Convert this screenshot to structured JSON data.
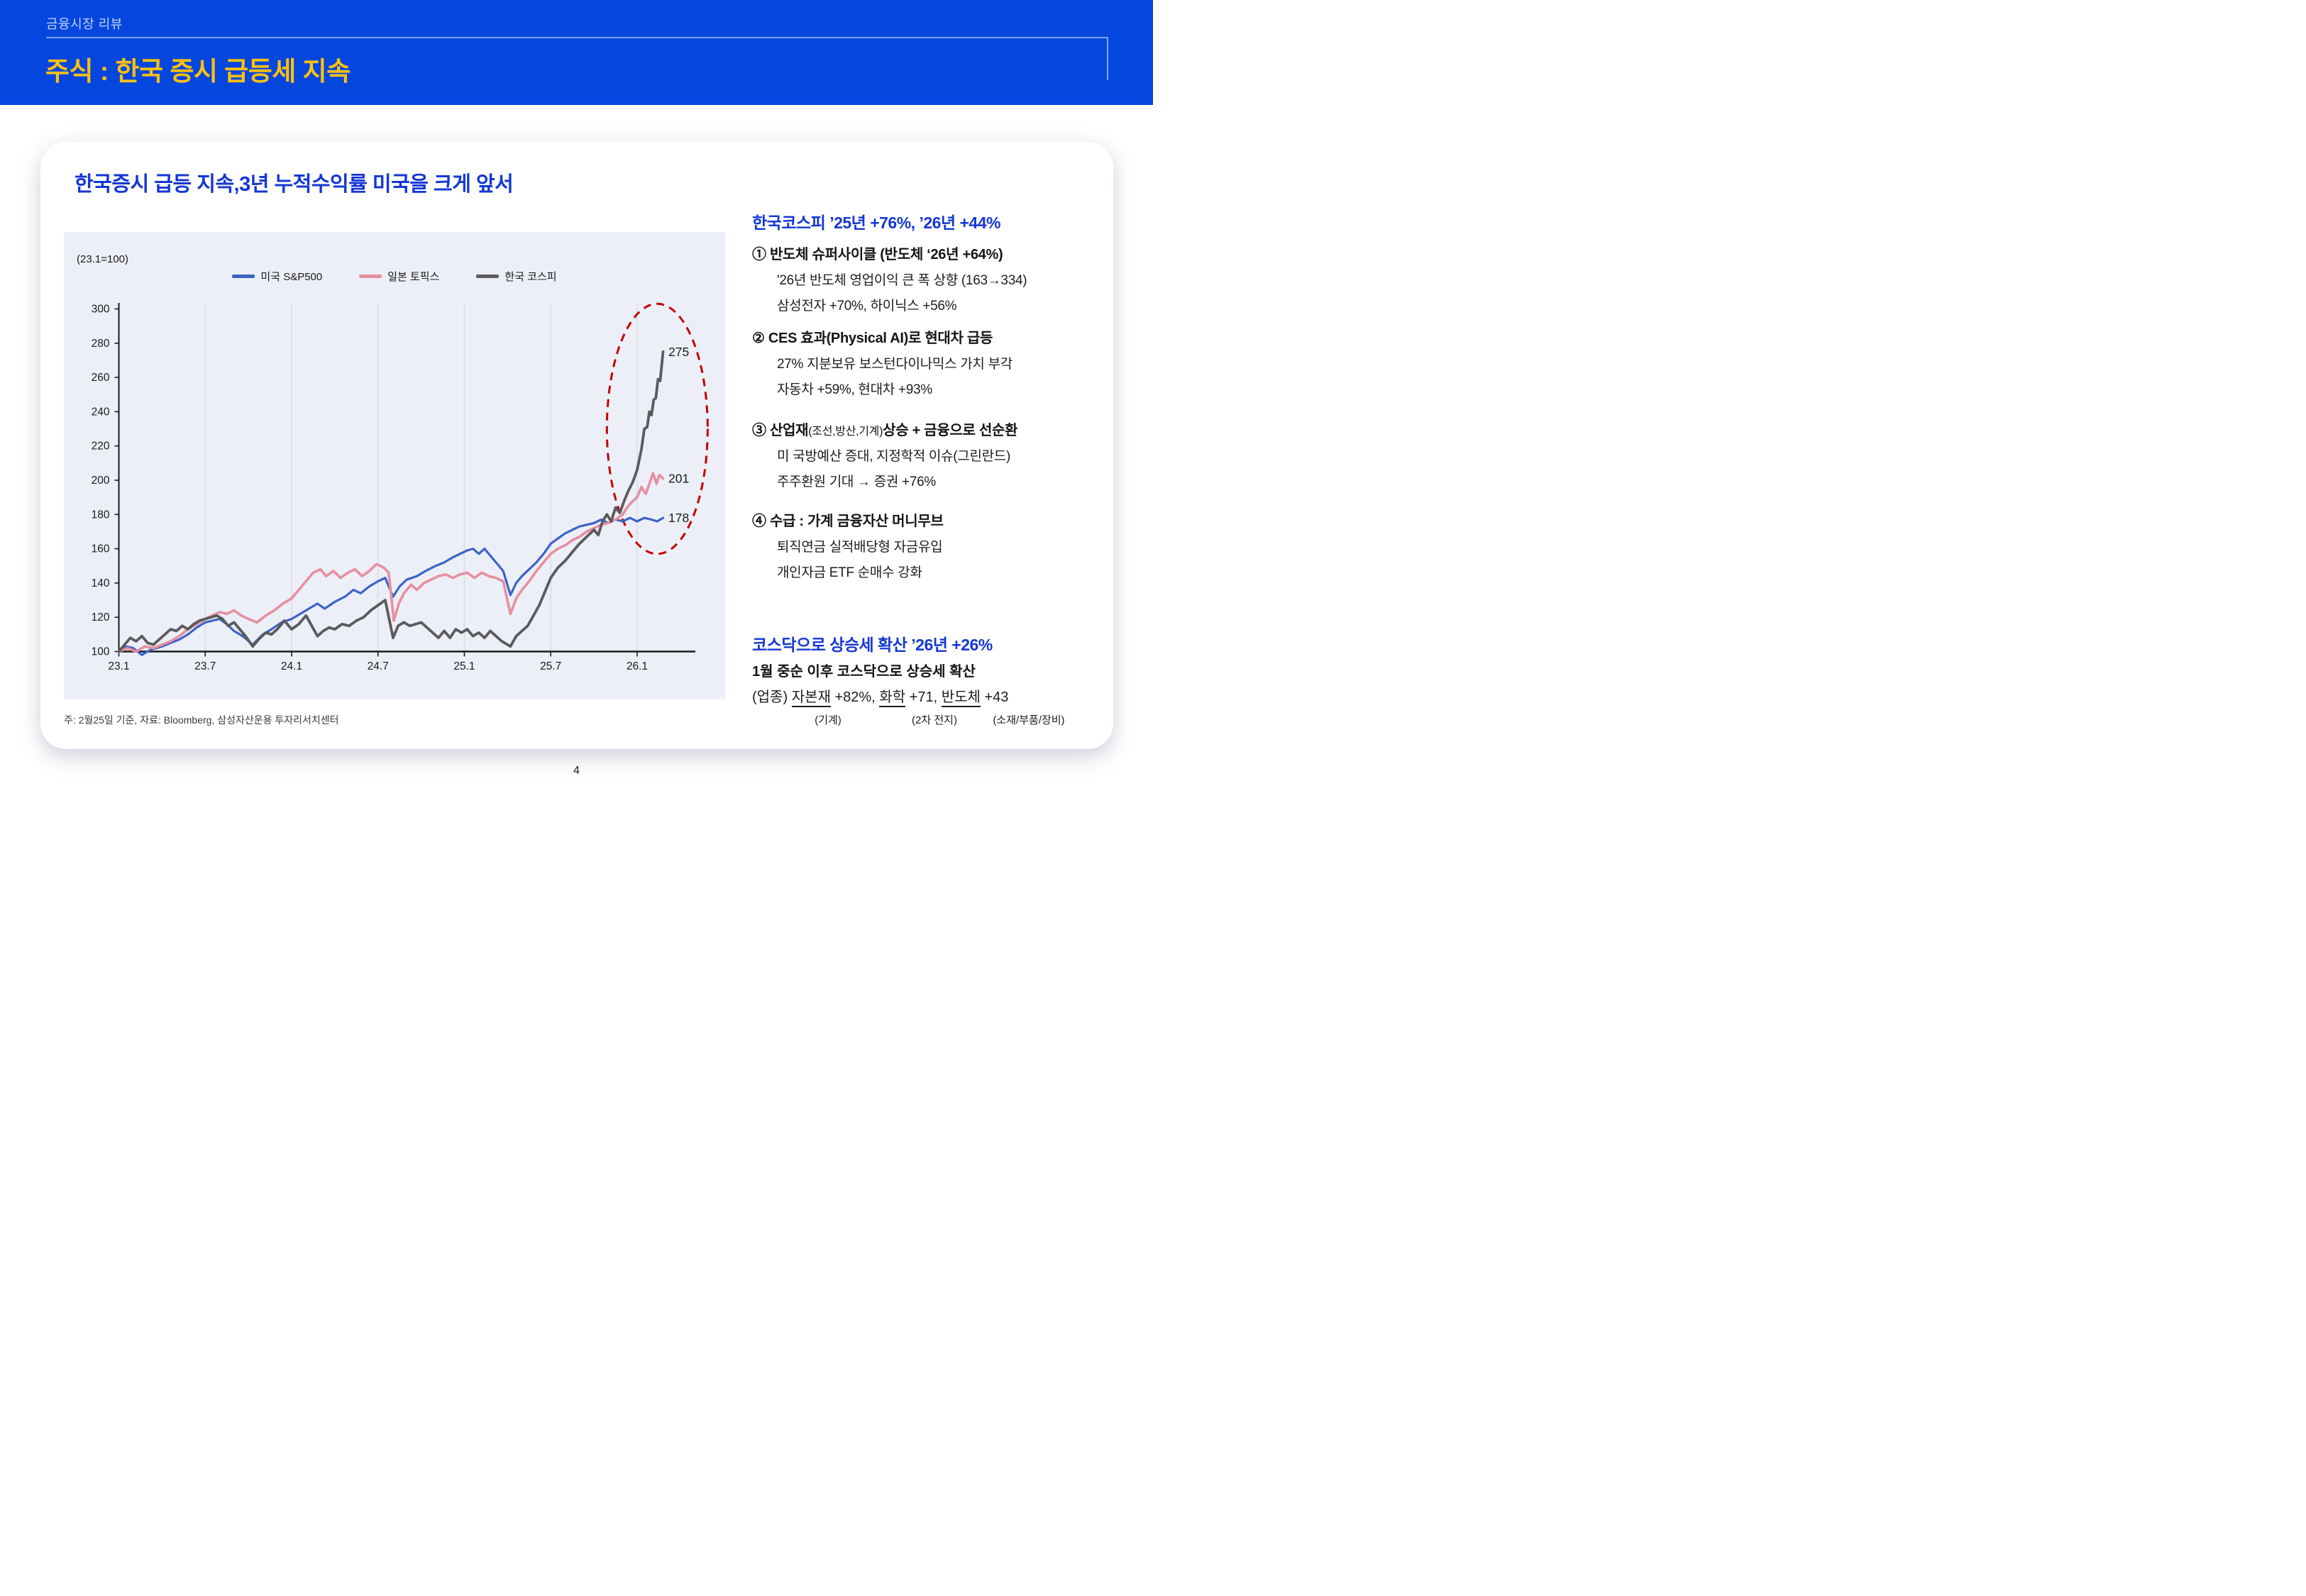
{
  "header": {
    "eyebrow": "금융시장 리뷰",
    "title": "주식 : 한국 증시 급등세 지속"
  },
  "card": {
    "subtitle": "한국증시 급등 지속,3년 누적수익률 미국을 크게 앞서"
  },
  "chart_data": {
    "type": "line",
    "title": "한국증시 급등 지속,3년 누적수익률 미국을 크게 앞서",
    "unit_note": "(23.1=100)",
    "xlabel": "",
    "ylabel": "",
    "x_tick_labels": [
      "23.1",
      "23.7",
      "24.1",
      "24.7",
      "25.1",
      "25.7",
      "26.1"
    ],
    "x_tick_months": [
      0,
      6,
      12,
      18,
      24,
      30,
      36
    ],
    "y_ticks": [
      100,
      120,
      140,
      160,
      180,
      200,
      220,
      240,
      260,
      280,
      300
    ],
    "ylim": [
      100,
      300
    ],
    "xlim_months": [
      0,
      39
    ],
    "grid": "vertical-only",
    "legend_position": "top-center",
    "colors": {
      "sp500": "#3C63C8",
      "topix": "#E78FA0",
      "kospi": "#5B5B5D",
      "axis": "#1a1a1a",
      "gridline": "#DBDDE6",
      "highlight_ellipse": "#C00000",
      "plot_background": "#EDEFF8"
    },
    "series": [
      {
        "name": "미국 S&P500",
        "color": "#3C63C8",
        "width": 3.2,
        "end_label": "178",
        "points": [
          [
            0,
            100
          ],
          [
            0.5,
            103
          ],
          [
            1,
            102
          ],
          [
            1.6,
            98
          ],
          [
            2.2,
            101
          ],
          [
            3,
            103
          ],
          [
            3.6,
            105
          ],
          [
            4.2,
            107
          ],
          [
            4.8,
            110
          ],
          [
            5.4,
            114
          ],
          [
            6,
            117
          ],
          [
            6.5,
            118
          ],
          [
            7,
            119
          ],
          [
            7.5,
            116
          ],
          [
            8,
            112
          ],
          [
            8.6,
            109
          ],
          [
            9.3,
            104
          ],
          [
            10,
            110
          ],
          [
            10.6,
            113
          ],
          [
            11.3,
            117
          ],
          [
            12,
            119
          ],
          [
            12.6,
            122
          ],
          [
            13.2,
            125
          ],
          [
            13.8,
            128
          ],
          [
            14.3,
            125
          ],
          [
            15,
            129
          ],
          [
            15.7,
            132
          ],
          [
            16.3,
            136
          ],
          [
            16.8,
            134
          ],
          [
            17.4,
            138
          ],
          [
            18,
            141
          ],
          [
            18.5,
            143
          ],
          [
            19.05,
            132
          ],
          [
            19.5,
            138
          ],
          [
            20,
            142
          ],
          [
            20.7,
            144
          ],
          [
            21.3,
            147
          ],
          [
            22,
            150
          ],
          [
            22.6,
            152
          ],
          [
            23.2,
            155
          ],
          [
            23.7,
            157
          ],
          [
            24.2,
            159
          ],
          [
            24.6,
            160
          ],
          [
            25,
            157
          ],
          [
            25.4,
            160
          ],
          [
            25.8,
            156
          ],
          [
            26.2,
            152
          ],
          [
            26.7,
            147
          ],
          [
            27.2,
            133
          ],
          [
            27.6,
            140
          ],
          [
            28,
            144
          ],
          [
            28.5,
            148
          ],
          [
            29,
            152
          ],
          [
            29.5,
            157
          ],
          [
            30,
            163
          ],
          [
            30.5,
            166
          ],
          [
            31,
            169
          ],
          [
            31.5,
            171
          ],
          [
            32,
            173
          ],
          [
            32.5,
            174
          ],
          [
            33,
            175
          ],
          [
            33.5,
            177
          ],
          [
            34,
            175
          ],
          [
            34.5,
            177
          ],
          [
            35,
            176
          ],
          [
            35.5,
            178
          ],
          [
            36,
            176
          ],
          [
            36.5,
            178
          ],
          [
            37,
            177
          ],
          [
            37.4,
            176
          ],
          [
            37.8,
            178
          ]
        ]
      },
      {
        "name": "일본 토픽스",
        "color": "#E78FA0",
        "width": 3.6,
        "end_label": "201",
        "points": [
          [
            0,
            100
          ],
          [
            0.6,
            102
          ],
          [
            1.2,
            100
          ],
          [
            1.8,
            103
          ],
          [
            2.4,
            102
          ],
          [
            3,
            104
          ],
          [
            3.6,
            106
          ],
          [
            4.2,
            109
          ],
          [
            4.8,
            113
          ],
          [
            5.4,
            116
          ],
          [
            6,
            119
          ],
          [
            6.5,
            121
          ],
          [
            7,
            123
          ],
          [
            7.5,
            122
          ],
          [
            8,
            124
          ],
          [
            8.5,
            121
          ],
          [
            9,
            119
          ],
          [
            9.6,
            117
          ],
          [
            10.2,
            121
          ],
          [
            10.8,
            124
          ],
          [
            11.4,
            128
          ],
          [
            12,
            131
          ],
          [
            12.5,
            136
          ],
          [
            13,
            141
          ],
          [
            13.5,
            146
          ],
          [
            14,
            148
          ],
          [
            14.4,
            144
          ],
          [
            14.9,
            147
          ],
          [
            15.4,
            143
          ],
          [
            15.9,
            146
          ],
          [
            16.4,
            148
          ],
          [
            16.9,
            144
          ],
          [
            17.4,
            147
          ],
          [
            17.9,
            151
          ],
          [
            18.4,
            149
          ],
          [
            18.75,
            146
          ],
          [
            19.1,
            118
          ],
          [
            19.45,
            128
          ],
          [
            19.8,
            134
          ],
          [
            20.3,
            139
          ],
          [
            20.7,
            136
          ],
          [
            21.2,
            140
          ],
          [
            21.7,
            142
          ],
          [
            22.2,
            144
          ],
          [
            22.7,
            145
          ],
          [
            23.2,
            143
          ],
          [
            23.7,
            145
          ],
          [
            24.2,
            146
          ],
          [
            24.7,
            143
          ],
          [
            25.2,
            146
          ],
          [
            25.7,
            144
          ],
          [
            26.2,
            143
          ],
          [
            26.7,
            141
          ],
          [
            27.2,
            122
          ],
          [
            27.6,
            131
          ],
          [
            28,
            136
          ],
          [
            28.5,
            141
          ],
          [
            29,
            147
          ],
          [
            29.5,
            152
          ],
          [
            30,
            157
          ],
          [
            30.5,
            160
          ],
          [
            31,
            162
          ],
          [
            31.5,
            165
          ],
          [
            32,
            167
          ],
          [
            32.5,
            170
          ],
          [
            33,
            172
          ],
          [
            33.5,
            174
          ],
          [
            34,
            175
          ],
          [
            34.5,
            177
          ],
          [
            35,
            180
          ],
          [
            35.3,
            184
          ],
          [
            35.6,
            187
          ],
          [
            36,
            190
          ],
          [
            36.3,
            196
          ],
          [
            36.6,
            192
          ],
          [
            36.9,
            199
          ],
          [
            37.1,
            204
          ],
          [
            37.35,
            198
          ],
          [
            37.55,
            203
          ],
          [
            37.8,
            201
          ]
        ]
      },
      {
        "name": "한국 코스피",
        "color": "#5B5B5D",
        "width": 3.8,
        "end_label": "275",
        "points": [
          [
            0,
            100
          ],
          [
            0.4,
            104
          ],
          [
            0.8,
            108
          ],
          [
            1.2,
            106
          ],
          [
            1.6,
            109
          ],
          [
            2,
            105
          ],
          [
            2.4,
            104
          ],
          [
            2.8,
            107
          ],
          [
            3.2,
            110
          ],
          [
            3.6,
            113
          ],
          [
            4,
            112
          ],
          [
            4.4,
            115
          ],
          [
            4.8,
            113
          ],
          [
            5.2,
            116
          ],
          [
            5.6,
            118
          ],
          [
            6,
            119
          ],
          [
            6.4,
            120
          ],
          [
            6.8,
            121
          ],
          [
            7.2,
            119
          ],
          [
            7.6,
            115
          ],
          [
            8,
            117
          ],
          [
            8.4,
            113
          ],
          [
            8.8,
            109
          ],
          [
            9.3,
            103
          ],
          [
            9.7,
            107
          ],
          [
            10.2,
            111
          ],
          [
            10.6,
            110
          ],
          [
            11,
            113
          ],
          [
            11.5,
            118
          ],
          [
            12,
            113
          ],
          [
            12.5,
            116
          ],
          [
            13,
            121
          ],
          [
            13.4,
            115
          ],
          [
            13.8,
            109
          ],
          [
            14.2,
            112
          ],
          [
            14.6,
            114
          ],
          [
            15,
            113
          ],
          [
            15.5,
            116
          ],
          [
            16,
            115
          ],
          [
            16.5,
            118
          ],
          [
            17,
            120
          ],
          [
            17.5,
            124
          ],
          [
            18,
            127
          ],
          [
            18.5,
            130
          ],
          [
            19.05,
            108
          ],
          [
            19.4,
            115
          ],
          [
            19.8,
            117
          ],
          [
            20.2,
            115
          ],
          [
            20.6,
            116
          ],
          [
            21,
            117
          ],
          [
            21.4,
            114
          ],
          [
            21.8,
            111
          ],
          [
            22.2,
            108
          ],
          [
            22.6,
            112
          ],
          [
            23,
            108
          ],
          [
            23.4,
            113
          ],
          [
            23.8,
            111
          ],
          [
            24.2,
            113
          ],
          [
            24.6,
            109
          ],
          [
            25,
            111
          ],
          [
            25.4,
            108
          ],
          [
            25.8,
            112
          ],
          [
            26.2,
            109
          ],
          [
            26.6,
            106
          ],
          [
            27.2,
            103
          ],
          [
            27.6,
            109
          ],
          [
            28,
            112
          ],
          [
            28.4,
            115
          ],
          [
            28.8,
            121
          ],
          [
            29.2,
            127
          ],
          [
            29.6,
            135
          ],
          [
            30,
            143
          ],
          [
            30.5,
            149
          ],
          [
            31,
            153
          ],
          [
            31.5,
            158
          ],
          [
            32,
            163
          ],
          [
            32.5,
            167
          ],
          [
            33,
            171
          ],
          [
            33.3,
            168
          ],
          [
            33.6,
            176
          ],
          [
            33.9,
            180
          ],
          [
            34.2,
            176
          ],
          [
            34.5,
            184
          ],
          [
            34.8,
            181
          ],
          [
            35.1,
            188
          ],
          [
            35.4,
            194
          ],
          [
            35.7,
            199
          ],
          [
            36,
            206
          ],
          [
            36.3,
            218
          ],
          [
            36.5,
            230
          ],
          [
            36.7,
            231
          ],
          [
            36.85,
            240
          ],
          [
            37,
            238
          ],
          [
            37.15,
            247
          ],
          [
            37.3,
            248
          ],
          [
            37.45,
            259
          ],
          [
            37.6,
            258
          ],
          [
            37.8,
            275
          ]
        ]
      }
    ],
    "annotations": {
      "ellipse": {
        "cx_month": 37.4,
        "cy_value": 230,
        "rx_months": 3.5,
        "ry_values": 73
      },
      "end_labels": [
        "275",
        "201",
        "178"
      ]
    }
  },
  "footnote": "주: 2월25일 기준, 자료: Bloomberg, 삼성자산운용 투자리서치센터",
  "right_panel": {
    "heading1": "한국코스피 ’25년 +76%, ’26년 +44%",
    "sections": [
      {
        "title": "① 반도체 슈퍼사이클  (반도체 ‘26년 +64%)",
        "lines": [
          "'26년 반도체 영업이익 큰 폭 상향 (163→334)",
          "삼성전자 +70%, 하이닉스 +56%"
        ]
      },
      {
        "title": "② CES 효과(Physical AI)로 현대차 급등",
        "lines": [
          "27% 지분보유 보스턴다이나믹스 가치 부각",
          "자동차 +59%, 현대차 +93%"
        ]
      },
      {
        "title_pre": "③ 산업재",
        "title_small": "(조선,방산,기계)",
        "title_post": "상승 + 금융으로 선순환",
        "lines": [
          "미 국방예산 증대, 지정학적 이슈(그린란드)",
          "주주환원 기대 → 증권 +76%"
        ]
      },
      {
        "title": "④ 수급 : 가계 금융자산 머니무브",
        "lines": [
          "퇴직연금 실적배당형 자금유입",
          "개인자금 ETF 순매수 강화"
        ]
      }
    ],
    "heading2": "코스닥으로 상승세 확산 ’26년 +26%",
    "kosdaq_line": "1월 중순 이후 코스닥으로 상승세 확산",
    "sector_line": {
      "prefix": "(업종) ",
      "u1": "자본재",
      "mid1": " +82%, ",
      "u2": "화학",
      "mid2": " +71, ",
      "u3": "반도체",
      "mid3": " +43"
    },
    "sector_captions": [
      "(기계)",
      "(2차 전지)",
      "(소재/부품/장비)"
    ]
  },
  "page_number": "4"
}
